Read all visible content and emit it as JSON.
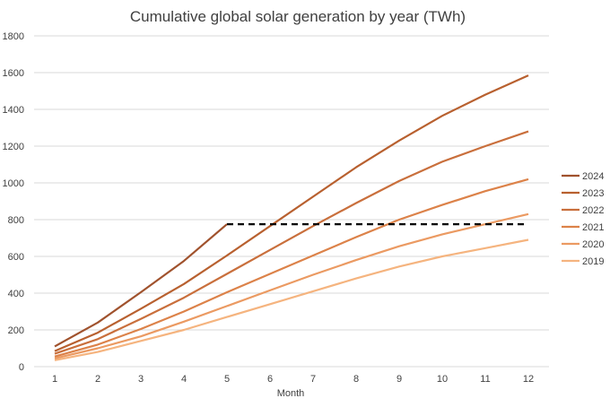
{
  "chart_data": {
    "type": "line",
    "title": "Cumulative global solar generation by year (TWh)",
    "xlabel": "Month",
    "ylabel": "",
    "x": [
      1,
      2,
      3,
      4,
      5,
      6,
      7,
      8,
      9,
      10,
      11,
      12
    ],
    "ylim": [
      0,
      1800
    ],
    "yticks": [
      0,
      200,
      400,
      600,
      800,
      1000,
      1200,
      1400,
      1600,
      1800
    ],
    "grid": true,
    "legend_position": "right",
    "series": [
      {
        "name": "2024",
        "color": "#a0522d",
        "values": [
          110,
          240,
          405,
          575,
          775,
          null,
          null,
          null,
          null,
          null,
          null,
          null
        ]
      },
      {
        "name": "2023",
        "color": "#b8602f",
        "values": [
          85,
          185,
          315,
          450,
          605,
          765,
          925,
          1085,
          1230,
          1365,
          1480,
          1585
        ]
      },
      {
        "name": "2022",
        "color": "#c96f3c",
        "values": [
          70,
          150,
          260,
          375,
          505,
          635,
          765,
          890,
          1010,
          1115,
          1200,
          1280
        ]
      },
      {
        "name": "2021",
        "color": "#dc8249",
        "values": [
          55,
          120,
          205,
          300,
          405,
          505,
          605,
          705,
          800,
          880,
          955,
          1020
        ]
      },
      {
        "name": "2020",
        "color": "#eb9a62",
        "values": [
          45,
          100,
          165,
          245,
          330,
          415,
          500,
          580,
          655,
          720,
          775,
          830
        ]
      },
      {
        "name": "2019",
        "color": "#f5b47f",
        "values": [
          35,
          80,
          140,
          200,
          270,
          340,
          410,
          480,
          545,
          600,
          645,
          690
        ]
      }
    ],
    "reference_line": {
      "value": 775,
      "x_from": 5,
      "x_to": 12,
      "style": "dashed",
      "color": "#000000"
    }
  }
}
